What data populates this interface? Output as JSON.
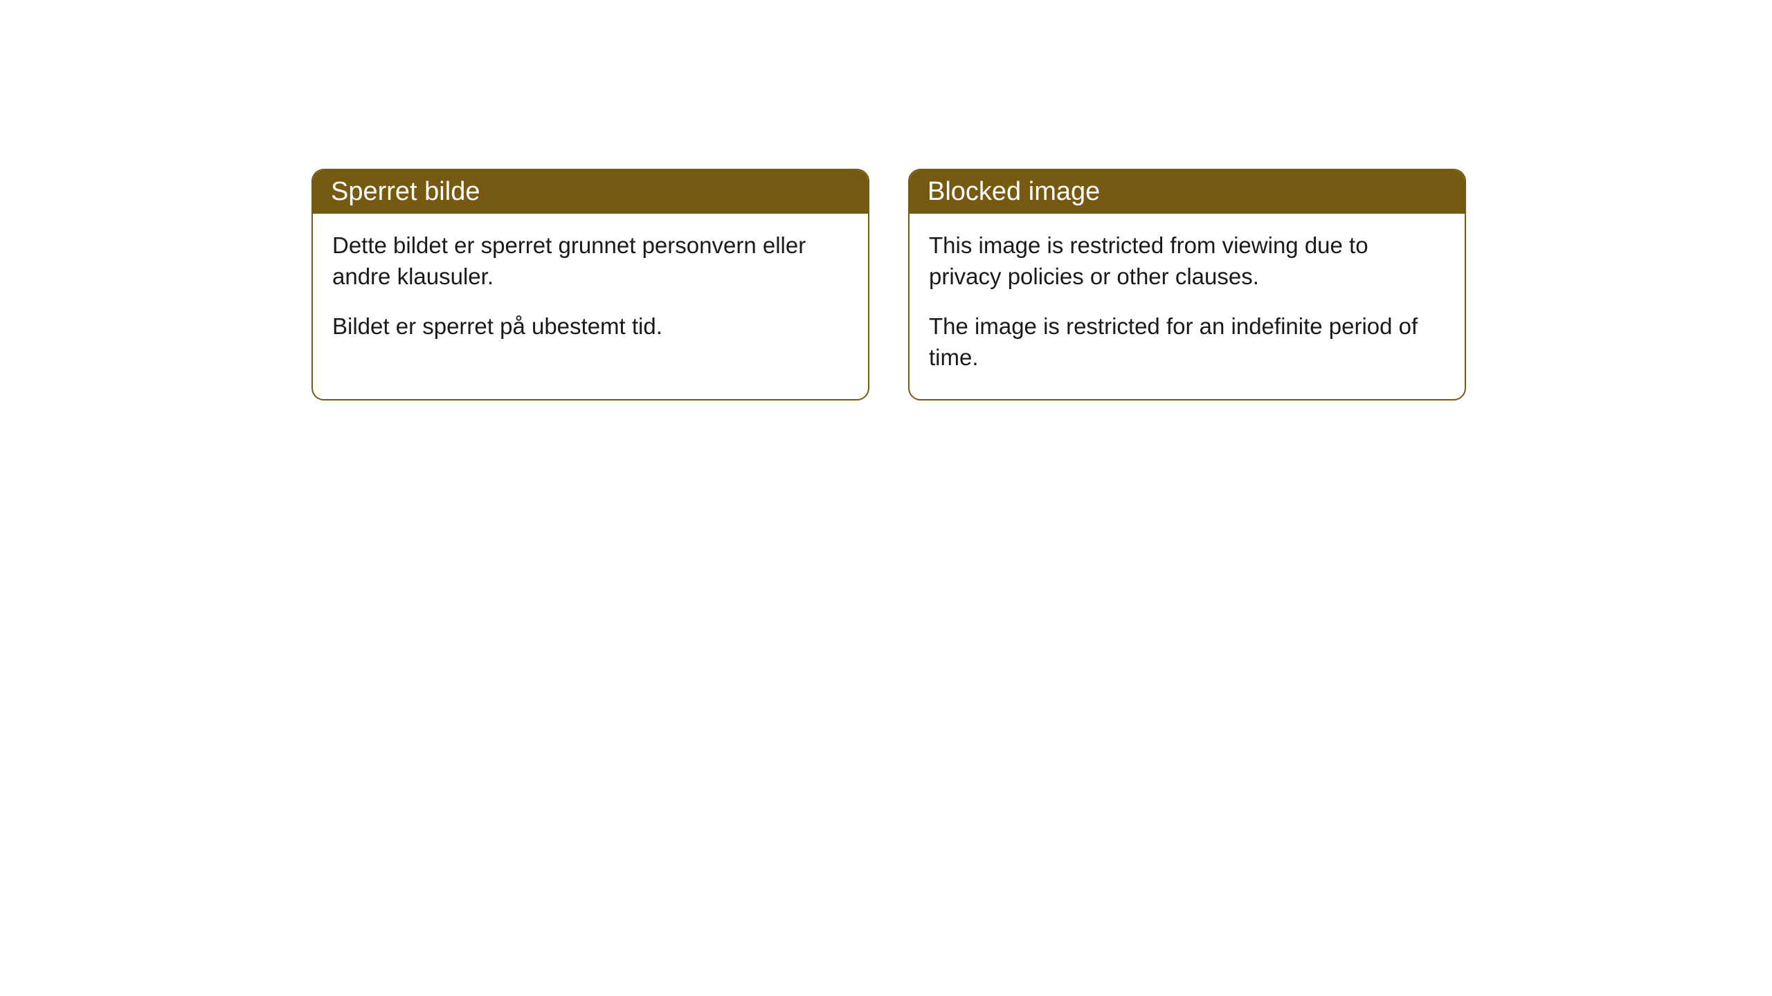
{
  "cards": [
    {
      "title": "Sperret bilde",
      "paragraph1": "Dette bildet er sperret grunnet personvern eller andre klausuler.",
      "paragraph2": "Bildet er sperret på ubestemt tid."
    },
    {
      "title": "Blocked image",
      "paragraph1": "This image is restricted from viewing due to privacy policies or other clauses.",
      "paragraph2": "The image is restricted for an indefinite period of time."
    }
  ],
  "styling": {
    "header_background": "#775a11",
    "header_text_color": "#ffffff",
    "border_color": "#775a11",
    "body_background": "#ffffff",
    "body_text_color": "#1a1a1a",
    "border_radius": 18,
    "header_fontsize": 38,
    "body_fontsize": 33
  }
}
